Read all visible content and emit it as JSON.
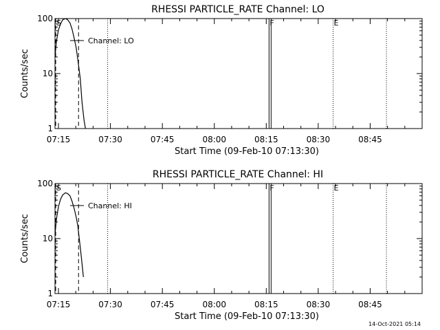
{
  "chart_data": [
    {
      "type": "line",
      "title": "RHESSI PARTICLE_RATE Channel: LO",
      "xlabel": "Start Time (09-Feb-10 07:13:30)",
      "ylabel": "Counts/sec",
      "yscale": "log",
      "ylim": [
        1,
        100
      ],
      "yticks": [
        {
          "value": 1,
          "label": "1"
        },
        {
          "value": 10,
          "label": "10"
        },
        {
          "value": 100,
          "label": "100"
        }
      ],
      "xlim_min": [
        434,
        540
      ],
      "xticks": [
        {
          "min": 435,
          "label": "07:15"
        },
        {
          "min": 450,
          "label": "07:30"
        },
        {
          "min": 465,
          "label": "07:45"
        },
        {
          "min": 480,
          "label": "08:00"
        },
        {
          "min": 495,
          "label": "08:15"
        },
        {
          "min": 510,
          "label": "08:30"
        },
        {
          "min": 525,
          "label": "08:45"
        }
      ],
      "legend": "Channel: LO",
      "series": [
        {
          "name": "Channel: LO",
          "x_min": [
            434,
            434.4,
            435,
            435.6,
            436.2,
            437,
            437.6,
            438.3,
            438.9,
            439.5,
            440.1,
            440.6,
            441.3,
            441.8,
            442.4,
            442.8
          ],
          "y": [
            20,
            38,
            62,
            80,
            95,
            100,
            96,
            84,
            65,
            45,
            30,
            18,
            8,
            3,
            1.4,
            1
          ]
        }
      ],
      "markers": [
        {
          "min": 434.2,
          "style": "dashed",
          "label": "S"
        },
        {
          "min": 440.8,
          "style": "dashed",
          "label": ""
        },
        {
          "min": 449.2,
          "style": "dotted",
          "label": ""
        },
        {
          "min": 495.8,
          "style": "solid",
          "label": "F"
        },
        {
          "min": 496.4,
          "style": "solid",
          "label": ""
        },
        {
          "min": 514.3,
          "style": "dotted",
          "label": "E"
        },
        {
          "min": 529.7,
          "style": "dotted",
          "label": ""
        }
      ]
    },
    {
      "type": "line",
      "title": "RHESSI PARTICLE_RATE Channel: HI",
      "xlabel": "Start Time (09-Feb-10 07:13:30)",
      "ylabel": "Counts/sec",
      "yscale": "log",
      "ylim": [
        1,
        100
      ],
      "yticks": [
        {
          "value": 1,
          "label": "1"
        },
        {
          "value": 10,
          "label": "10"
        },
        {
          "value": 100,
          "label": "100"
        }
      ],
      "xlim_min": [
        434,
        540
      ],
      "xticks": [
        {
          "min": 435,
          "label": "07:15"
        },
        {
          "min": 450,
          "label": "07:30"
        },
        {
          "min": 465,
          "label": "07:45"
        },
        {
          "min": 480,
          "label": "08:00"
        },
        {
          "min": 495,
          "label": "08:15"
        },
        {
          "min": 510,
          "label": "08:30"
        },
        {
          "min": 525,
          "label": "08:45"
        }
      ],
      "legend": "Channel: HI",
      "series": [
        {
          "name": "Channel: HI",
          "x_min": [
            434,
            434.4,
            435,
            435.6,
            436.2,
            437,
            437.6,
            438.3,
            438.9,
            439.5,
            440.1,
            440.6,
            441,
            441.4,
            441.8,
            442.2
          ],
          "y": [
            12,
            22,
            38,
            52,
            62,
            68,
            66,
            60,
            48,
            36,
            25,
            17,
            10,
            6,
            3.5,
            2
          ]
        }
      ],
      "markers": [
        {
          "min": 434.2,
          "style": "dashed",
          "label": "S"
        },
        {
          "min": 440.8,
          "style": "dashed",
          "label": ""
        },
        {
          "min": 449.2,
          "style": "dotted",
          "label": ""
        },
        {
          "min": 495.8,
          "style": "solid",
          "label": "F"
        },
        {
          "min": 496.4,
          "style": "solid",
          "label": ""
        },
        {
          "min": 514.3,
          "style": "dotted",
          "label": "E"
        },
        {
          "min": 529.7,
          "style": "dotted",
          "label": ""
        }
      ]
    }
  ],
  "timestamp": "14-Oct-2021 05:14",
  "colors": {
    "foreground": "#000000",
    "background": "#ffffff"
  }
}
